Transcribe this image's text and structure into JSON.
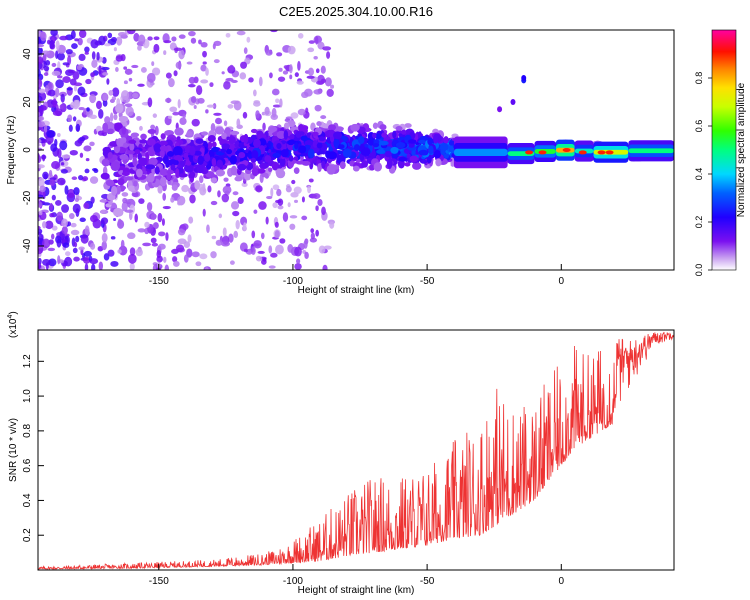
{
  "title": "C2E5.2025.304.10.00.R16",
  "chart_data": [
    {
      "type": "heatmap",
      "name": "spectrogram",
      "xlabel": "Height of straight line (km)",
      "ylabel": "Frequency (Hz)",
      "xlim": [
        -195,
        42
      ],
      "ylim": [
        -50,
        50
      ],
      "xticks": [
        -150,
        -100,
        -50,
        0
      ],
      "xtick_labels": [
        "-150",
        "-100",
        "-50",
        "0"
      ],
      "yticks": [
        -40,
        -20,
        0,
        20,
        40
      ],
      "ytick_labels": [
        "-40",
        "-20",
        "0",
        "20",
        "40"
      ],
      "colorbar": {
        "label": "Normalized spectral amplitude",
        "range": [
          0,
          1
        ],
        "ticks": [
          0.0,
          0.2,
          0.4,
          0.6,
          0.8
        ],
        "tick_labels": [
          "0.0",
          "0.2",
          "0.4",
          "0.6",
          "0.8"
        ],
        "colormap": "rainbow (purple-blue-cyan-green-yellow-orange-red-magenta)"
      },
      "description_points": [
        {
          "height_km": -190,
          "center_hz": 0,
          "spread_hz": 50,
          "amplitude": 0.12
        },
        {
          "height_km": -160,
          "center_hz": -3,
          "spread_hz": 14,
          "amplitude": 0.15
        },
        {
          "height_km": -140,
          "center_hz": -3,
          "spread_hz": 10,
          "amplitude": 0.2
        },
        {
          "height_km": -100,
          "center_hz": 1,
          "spread_hz": 8,
          "amplitude": 0.25
        },
        {
          "height_km": -60,
          "center_hz": 1,
          "spread_hz": 7,
          "amplitude": 0.3
        },
        {
          "height_km": -40,
          "center_hz": 0,
          "spread_hz": 4,
          "amplitude": 0.35
        },
        {
          "height_km": -20,
          "center_hz": -2,
          "spread_hz": 2,
          "amplitude": 0.5
        },
        {
          "height_km": 0,
          "center_hz": 0,
          "spread_hz": 2,
          "amplitude": 0.85
        },
        {
          "height_km": 20,
          "center_hz": -1,
          "spread_hz": 2,
          "amplitude": 0.75
        },
        {
          "height_km": 40,
          "center_hz": 0,
          "spread_hz": 2,
          "amplitude": 0.6
        }
      ]
    },
    {
      "type": "line",
      "name": "snr",
      "xlabel": "Height of straight line (km)",
      "ylabel": "SNR (10 * v/v)",
      "scale_label": "(x10",
      "scale_exponent": "4",
      "scale_suffix": ")",
      "xlim": [
        -195,
        42
      ],
      "ylim": [
        0,
        1.38
      ],
      "xticks": [
        -150,
        -100,
        -50,
        0
      ],
      "xtick_labels": [
        "-150",
        "-100",
        "-50",
        "0"
      ],
      "yticks": [
        0.2,
        0.4,
        0.6,
        0.8,
        1.0,
        1.2
      ],
      "ytick_labels": [
        "0.2",
        "0.4",
        "0.6",
        "0.8",
        "1.0",
        "1.2"
      ],
      "color": "#ee3333",
      "envelope": {
        "x": [
          -195,
          -160,
          -130,
          -110,
          -100,
          -90,
          -80,
          -70,
          -60,
          -50,
          -40,
          -30,
          -25,
          -20,
          -15,
          -10,
          -5,
          0,
          5,
          10,
          15,
          20,
          25,
          30,
          35,
          42
        ],
        "low": [
          0.005,
          0.01,
          0.02,
          0.03,
          0.04,
          0.05,
          0.08,
          0.1,
          0.12,
          0.14,
          0.18,
          0.2,
          0.25,
          0.3,
          0.35,
          0.4,
          0.5,
          0.6,
          0.7,
          0.75,
          0.8,
          0.85,
          1.0,
          1.15,
          1.28,
          1.33
        ],
        "high": [
          0.02,
          0.04,
          0.06,
          0.1,
          0.18,
          0.3,
          0.45,
          0.55,
          0.55,
          0.6,
          0.75,
          0.9,
          1.1,
          1.0,
          0.95,
          1.0,
          1.1,
          1.2,
          1.3,
          1.25,
          1.3,
          1.35,
          1.32,
          1.35,
          1.37,
          1.37
        ]
      }
    }
  ]
}
